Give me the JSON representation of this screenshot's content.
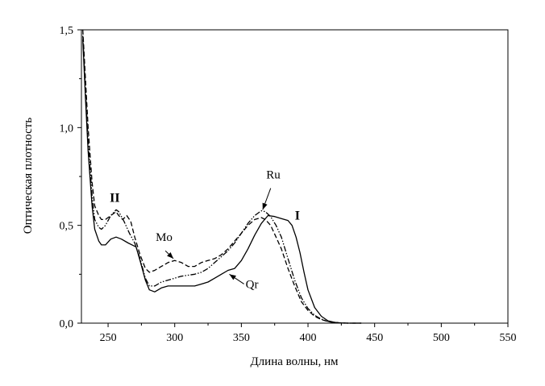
{
  "chart_data": {
    "type": "line",
    "title": "",
    "xlabel": "Длина волны, нм",
    "ylabel": "Оптическая плотность",
    "xlim": [
      230,
      550
    ],
    "ylim": [
      0.0,
      1.5
    ],
    "x_ticks": [
      250,
      300,
      350,
      400,
      450,
      500,
      550
    ],
    "x_tick_labels": [
      "250",
      "300",
      "350",
      "400",
      "450",
      "500",
      "550"
    ],
    "y_ticks": [
      0.0,
      0.5,
      1.0,
      1.5
    ],
    "y_tick_labels": [
      "0,0",
      "0,5",
      "1,0",
      "1,5"
    ],
    "grid": false,
    "series": [
      {
        "name": "Qr",
        "style": "solid",
        "color": "#000000",
        "x": [
          231,
          233,
          235,
          238,
          240,
          243,
          245,
          248,
          252,
          256,
          260,
          265,
          268,
          271,
          274,
          278,
          281,
          285,
          290,
          295,
          300,
          305,
          310,
          315,
          320,
          325,
          330,
          335,
          340,
          345,
          350,
          355,
          360,
          365,
          370,
          375,
          380,
          385,
          388,
          391,
          394,
          397,
          400,
          405,
          410,
          415,
          420,
          425,
          430,
          440
        ],
        "y": [
          1.45,
          1.15,
          0.88,
          0.6,
          0.48,
          0.42,
          0.4,
          0.4,
          0.43,
          0.44,
          0.43,
          0.41,
          0.4,
          0.39,
          0.32,
          0.22,
          0.17,
          0.16,
          0.18,
          0.19,
          0.19,
          0.19,
          0.19,
          0.19,
          0.2,
          0.21,
          0.23,
          0.25,
          0.27,
          0.28,
          0.32,
          0.38,
          0.45,
          0.51,
          0.55,
          0.545,
          0.535,
          0.525,
          0.5,
          0.44,
          0.36,
          0.26,
          0.17,
          0.08,
          0.035,
          0.012,
          0.004,
          0.001,
          0.0,
          0.0
        ]
      },
      {
        "name": "Mo",
        "style": "dashed",
        "color": "#000000",
        "x": [
          231,
          233,
          235,
          238,
          240,
          243,
          245,
          248,
          252,
          256,
          258,
          261,
          264,
          267,
          270,
          274,
          278,
          281,
          285,
          290,
          295,
          300,
          305,
          310,
          315,
          320,
          325,
          330,
          335,
          340,
          345,
          350,
          355,
          360,
          365,
          368,
          372,
          376,
          380,
          385,
          390,
          395,
          400,
          405,
          410,
          415,
          420,
          425,
          430,
          440
        ],
        "y": [
          1.5,
          1.25,
          1.0,
          0.72,
          0.6,
          0.55,
          0.53,
          0.53,
          0.55,
          0.57,
          0.55,
          0.53,
          0.55,
          0.52,
          0.44,
          0.35,
          0.28,
          0.26,
          0.27,
          0.29,
          0.31,
          0.32,
          0.31,
          0.29,
          0.29,
          0.31,
          0.32,
          0.33,
          0.35,
          0.38,
          0.42,
          0.46,
          0.5,
          0.53,
          0.54,
          0.53,
          0.5,
          0.44,
          0.38,
          0.28,
          0.19,
          0.11,
          0.065,
          0.035,
          0.018,
          0.008,
          0.003,
          0.001,
          0.0,
          0.0
        ]
      },
      {
        "name": "Ru",
        "style": "dash-dot-dot",
        "color": "#000000",
        "x": [
          231,
          233,
          235,
          238,
          240,
          243,
          245,
          248,
          252,
          256,
          258,
          262,
          266,
          270,
          274,
          278,
          281,
          285,
          290,
          295,
          300,
          305,
          310,
          315,
          320,
          325,
          330,
          335,
          340,
          345,
          350,
          355,
          360,
          365,
          368,
          372,
          376,
          380,
          385,
          390,
          395,
          400,
          405,
          410,
          415,
          420,
          425,
          430,
          440
        ],
        "y": [
          1.47,
          1.2,
          0.93,
          0.65,
          0.53,
          0.49,
          0.48,
          0.5,
          0.55,
          0.58,
          0.57,
          0.52,
          0.46,
          0.41,
          0.33,
          0.23,
          0.19,
          0.19,
          0.21,
          0.22,
          0.23,
          0.24,
          0.245,
          0.25,
          0.26,
          0.28,
          0.31,
          0.34,
          0.37,
          0.41,
          0.46,
          0.51,
          0.55,
          0.575,
          0.57,
          0.545,
          0.5,
          0.44,
          0.33,
          0.22,
          0.13,
          0.075,
          0.04,
          0.02,
          0.009,
          0.004,
          0.001,
          0.0,
          0.0
        ]
      }
    ],
    "annotations": [
      {
        "text": "II",
        "x": 255,
        "y": 0.62,
        "bold": true
      },
      {
        "text": "I",
        "x": 392,
        "y": 0.53,
        "bold": true
      },
      {
        "text": "Ru",
        "x": 374,
        "y": 0.74,
        "bold": false
      },
      {
        "text": "Mo",
        "x": 292,
        "y": 0.42,
        "bold": false
      },
      {
        "text": "Qr",
        "x": 358,
        "y": 0.18,
        "bold": false
      }
    ],
    "arrows": [
      {
        "target_series": "Ru",
        "from": [
          372,
          0.69
        ],
        "to": [
          366,
          0.58
        ]
      },
      {
        "target_series": "Mo",
        "from": [
          293,
          0.37
        ],
        "to": [
          299,
          0.33
        ]
      },
      {
        "target_series": "Qr",
        "from": [
          352,
          0.2
        ],
        "to": [
          341,
          0.25
        ]
      }
    ]
  }
}
